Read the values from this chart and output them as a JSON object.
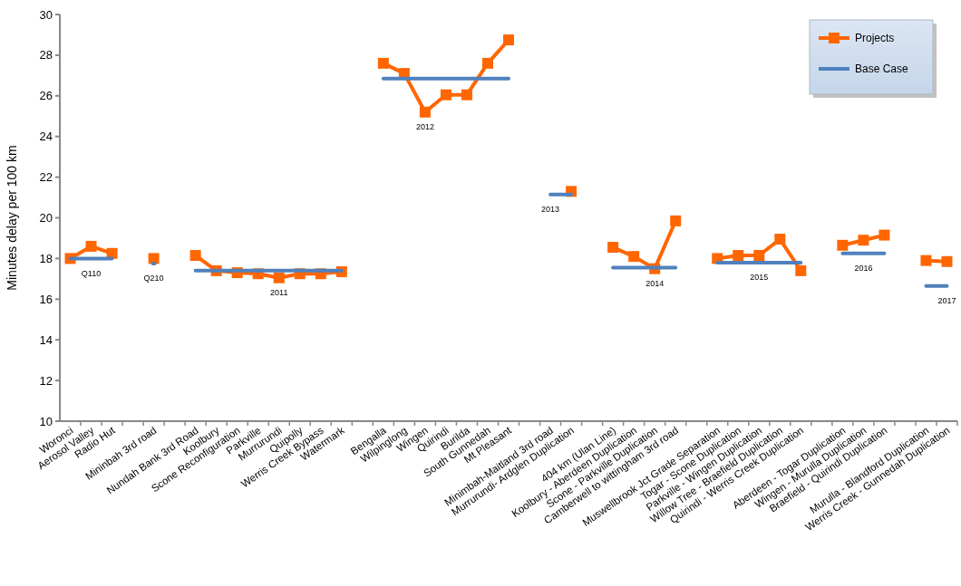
{
  "chart_data": {
    "type": "line",
    "ylabel": "Minutes delay per 100 km",
    "categories": [
      "Woronci",
      "Aerosol Valley",
      "Radio Hut",
      null,
      "Mininbah 3rd road",
      null,
      "Nundah Bank 3rd Road",
      "Koolbury",
      "Scone Reconfiguration",
      "Parkville",
      "Murrurundi",
      "Quipolly",
      "Werris Creek Bypass",
      "Watermark",
      null,
      "Bengalla",
      "Wilpinglong",
      "Wingen",
      "Quirindi",
      "Burilda",
      "South Gunnedah",
      "Mt Pleasant",
      null,
      "Minimbah-Maitland 3rd road",
      "Murrurundi- Ardglen Duplication",
      null,
      "404 km (Ulan Line)",
      "Koolbury - Aberdeen Duplication",
      "Scone - Parkville Duplication",
      "Camberwell to wittingham 3rd road",
      null,
      "Muswellbrook Jct Grade Separation",
      "Togar - Scone Duplication",
      "Parkville - Wingen Duplication",
      "Willow Tree - Braefield Duplication",
      "Quirindi - Werris Creek Duplication",
      null,
      "Aberdeen - Togar Duplication",
      "Wingen - Murulla Duplication",
      "Braefield - Quirindi Duplication",
      null,
      "Murulla - Blandford Duplication",
      "Werris Creek - Gunnedah Duplication"
    ],
    "series": [
      {
        "name": "Projects",
        "color": "#ff6600",
        "marker": "square",
        "values": [
          18.0,
          18.6,
          18.25,
          null,
          18.0,
          null,
          18.15,
          17.4,
          17.3,
          17.25,
          17.05,
          17.25,
          17.25,
          17.35,
          null,
          27.6,
          27.1,
          25.2,
          26.05,
          26.05,
          27.6,
          28.75,
          null,
          null,
          21.3,
          null,
          18.55,
          18.1,
          17.5,
          19.85,
          null,
          18.0,
          18.15,
          18.15,
          18.95,
          17.4,
          null,
          18.65,
          18.9,
          19.15,
          null,
          17.9,
          17.85
        ]
      },
      {
        "name": "Base Case",
        "color": "#4f81bd",
        "marker": "none",
        "values": [
          18.0,
          18.0,
          18.0,
          null,
          17.75,
          null,
          17.4,
          17.4,
          17.4,
          17.4,
          17.4,
          17.4,
          17.4,
          17.4,
          null,
          26.85,
          26.85,
          26.85,
          26.85,
          26.85,
          26.85,
          26.85,
          null,
          21.15,
          21.15,
          null,
          17.55,
          17.55,
          17.55,
          17.55,
          null,
          17.8,
          17.8,
          17.8,
          17.8,
          17.8,
          null,
          18.25,
          18.25,
          18.25,
          null,
          16.65,
          16.65
        ]
      }
    ],
    "ylim": [
      10,
      30
    ],
    "yticks": [
      10,
      12,
      14,
      16,
      18,
      20,
      22,
      24,
      26,
      28,
      30
    ],
    "grid": false,
    "legend": "top right",
    "annotations": [
      {
        "text": "Q110",
        "x": "Aerosol Valley",
        "y": 18.0
      },
      {
        "text": "Q210",
        "x": "Mininbah 3rd road",
        "y": 17.75
      },
      {
        "text": "2011",
        "x": "Murrurundi",
        "y": 17.05
      },
      {
        "text": "2012",
        "x": "Wingen",
        "y": 25.2
      },
      {
        "text": "2013",
        "x": "Minimbah-Maitland 3rd road",
        "y": 21.15
      },
      {
        "text": "2014",
        "x": "Scone - Parkville Duplication",
        "y": 17.5
      },
      {
        "text": "2015",
        "x": "Parkville - Wingen Duplication",
        "y": 17.8
      },
      {
        "text": "2016",
        "x": "Wingen - Murulla Duplication",
        "y": 18.25
      },
      {
        "text": "2017",
        "x": "Werris Creek - Gunnedah Duplication",
        "y": 16.65
      }
    ]
  }
}
